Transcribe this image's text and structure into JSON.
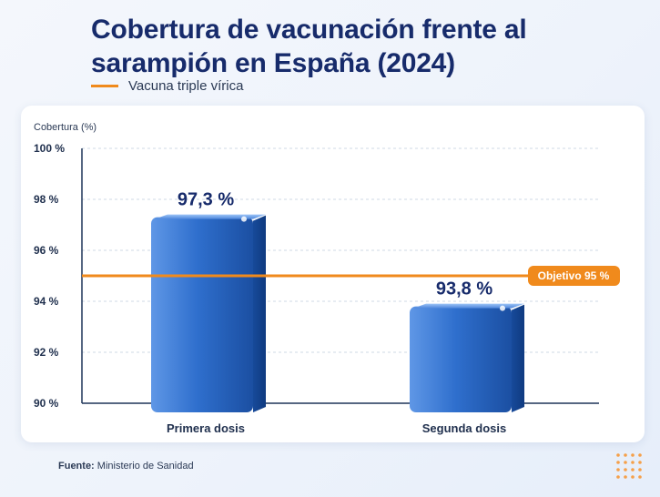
{
  "title": "Cobertura de vacunación frente al sarampión en España (2024)",
  "legend_label": "Vacuna triple vírica",
  "source_label": "Fuente:",
  "source_value": "Ministerio de Sanidad",
  "colors": {
    "title": "#172b6b",
    "bar": "#2a66c4",
    "target_line": "#f08a1c"
  },
  "chart_data": {
    "type": "bar",
    "title": "Cobertura de vacunación frente al sarampión en España (2024)",
    "ylabel": "Cobertura (%)",
    "xlabel": "",
    "ylim": [
      90,
      100
    ],
    "yticks": [
      90,
      92,
      94,
      96,
      98,
      100
    ],
    "ytick_labels": [
      "90 %",
      "92 %",
      "94 %",
      "96 %",
      "98 %",
      "100 %"
    ],
    "categories": [
      "Primera dosis",
      "Segunda dosis"
    ],
    "values": [
      97.3,
      93.8
    ],
    "value_labels": [
      "97,3 %",
      "93,8 %"
    ],
    "grid": true,
    "reference_line": {
      "value": 95,
      "label": "Objetivo 95 %"
    }
  }
}
